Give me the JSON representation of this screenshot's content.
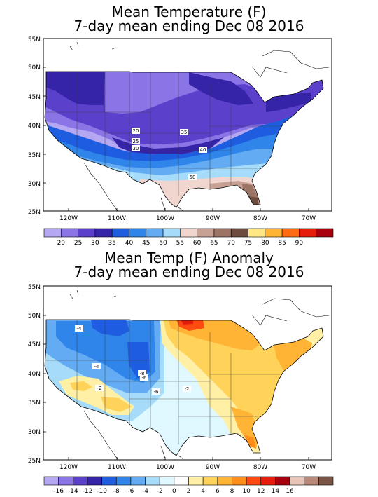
{
  "panels": [
    {
      "title_line1": "Mean Temperature (F)",
      "title_line2": "7-day mean ending Dec 08 2016",
      "lat_labels": [
        "55N",
        "50N",
        "45N",
        "40N",
        "35N",
        "30N",
        "25N"
      ],
      "lon_labels": [
        "120W",
        "110W",
        "100W",
        "90W",
        "80W",
        "70W"
      ],
      "contour_labels": [
        "20",
        "25",
        "30",
        "35",
        "40",
        "50"
      ],
      "colorbar": {
        "colors": [
          "#b6a7f3",
          "#8a74e6",
          "#5b40cc",
          "#3523a8",
          "#1e5de0",
          "#2f85ea",
          "#63abf3",
          "#a6dcf9",
          "#f0d6ce",
          "#c8a195",
          "#9c7465",
          "#6e4b3f",
          "#ffe883",
          "#ffb436",
          "#ff6b12",
          "#e51d0b",
          "#a8000c"
        ],
        "labels": [
          "20",
          "25",
          "30",
          "35",
          "40",
          "45",
          "50",
          "55",
          "60",
          "65",
          "70",
          "75",
          "80",
          "85",
          "90"
        ]
      }
    },
    {
      "title_line1": "Mean Temp (F) Anomaly",
      "title_line2": "7-day mean ending Dec 08 2016",
      "lat_labels": [
        "55N",
        "50N",
        "45N",
        "40N",
        "35N",
        "30N",
        "25N"
      ],
      "lon_labels": [
        "120W",
        "110W",
        "100W",
        "90W",
        "80W",
        "70W"
      ],
      "contour_labels": [
        "-4",
        "-4",
        "-6",
        "-8",
        "-6",
        "-2",
        "-2"
      ],
      "colorbar": {
        "colors": [
          "#b6a7f3",
          "#8a74e6",
          "#5b40cc",
          "#3523a8",
          "#1e5de0",
          "#2f85ea",
          "#63abf3",
          "#a6dcf9",
          "#e0f8ff",
          "#ffffff",
          "#fff0a6",
          "#ffd35a",
          "#ffb436",
          "#ff8d1a",
          "#ff4a10",
          "#e51d0b",
          "#a8000c",
          "#e8c4b6",
          "#b88878",
          "#7a5444"
        ],
        "labels": [
          "-16",
          "-14",
          "-12",
          "-10",
          "-8",
          "-6",
          "-4",
          "-2",
          "0",
          "2",
          "4",
          "6",
          "8",
          "10",
          "12",
          "14",
          "16"
        ]
      }
    }
  ]
}
